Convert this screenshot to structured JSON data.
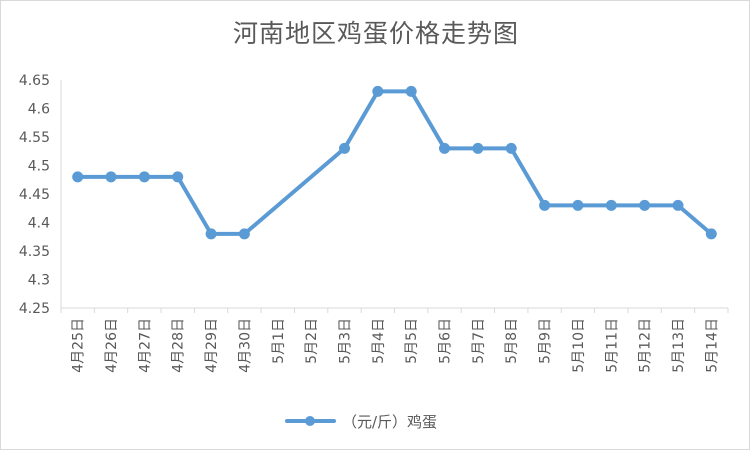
{
  "chart_data": {
    "type": "line",
    "title": "河南地区鸡蛋价格走势图",
    "xlabel": "",
    "ylabel": "",
    "ylim": [
      4.25,
      4.65
    ],
    "yticks": [
      "4.25",
      "4.3",
      "4.35",
      "4.4",
      "4.45",
      "4.5",
      "4.55",
      "4.6",
      "4.65"
    ],
    "categories": [
      "4月25日",
      "4月26日",
      "4月27日",
      "4月28日",
      "4月29日",
      "4月30日",
      "5月1日",
      "5月2日",
      "5月3日",
      "5月4日",
      "5月5日",
      "5月6日",
      "5月7日",
      "5月8日",
      "5月9日",
      "5月10日",
      "5月11日",
      "5月12日",
      "5月13日",
      "5月14日"
    ],
    "series": [
      {
        "name": "（元/斤）鸡蛋",
        "color": "#5b9bd5",
        "values": [
          4.48,
          4.48,
          4.48,
          4.48,
          4.38,
          4.38,
          null,
          null,
          4.53,
          4.63,
          4.63,
          4.53,
          4.53,
          4.53,
          4.43,
          4.43,
          4.43,
          4.43,
          4.43,
          4.38
        ]
      }
    ],
    "grid": false,
    "legend": "bottom"
  }
}
